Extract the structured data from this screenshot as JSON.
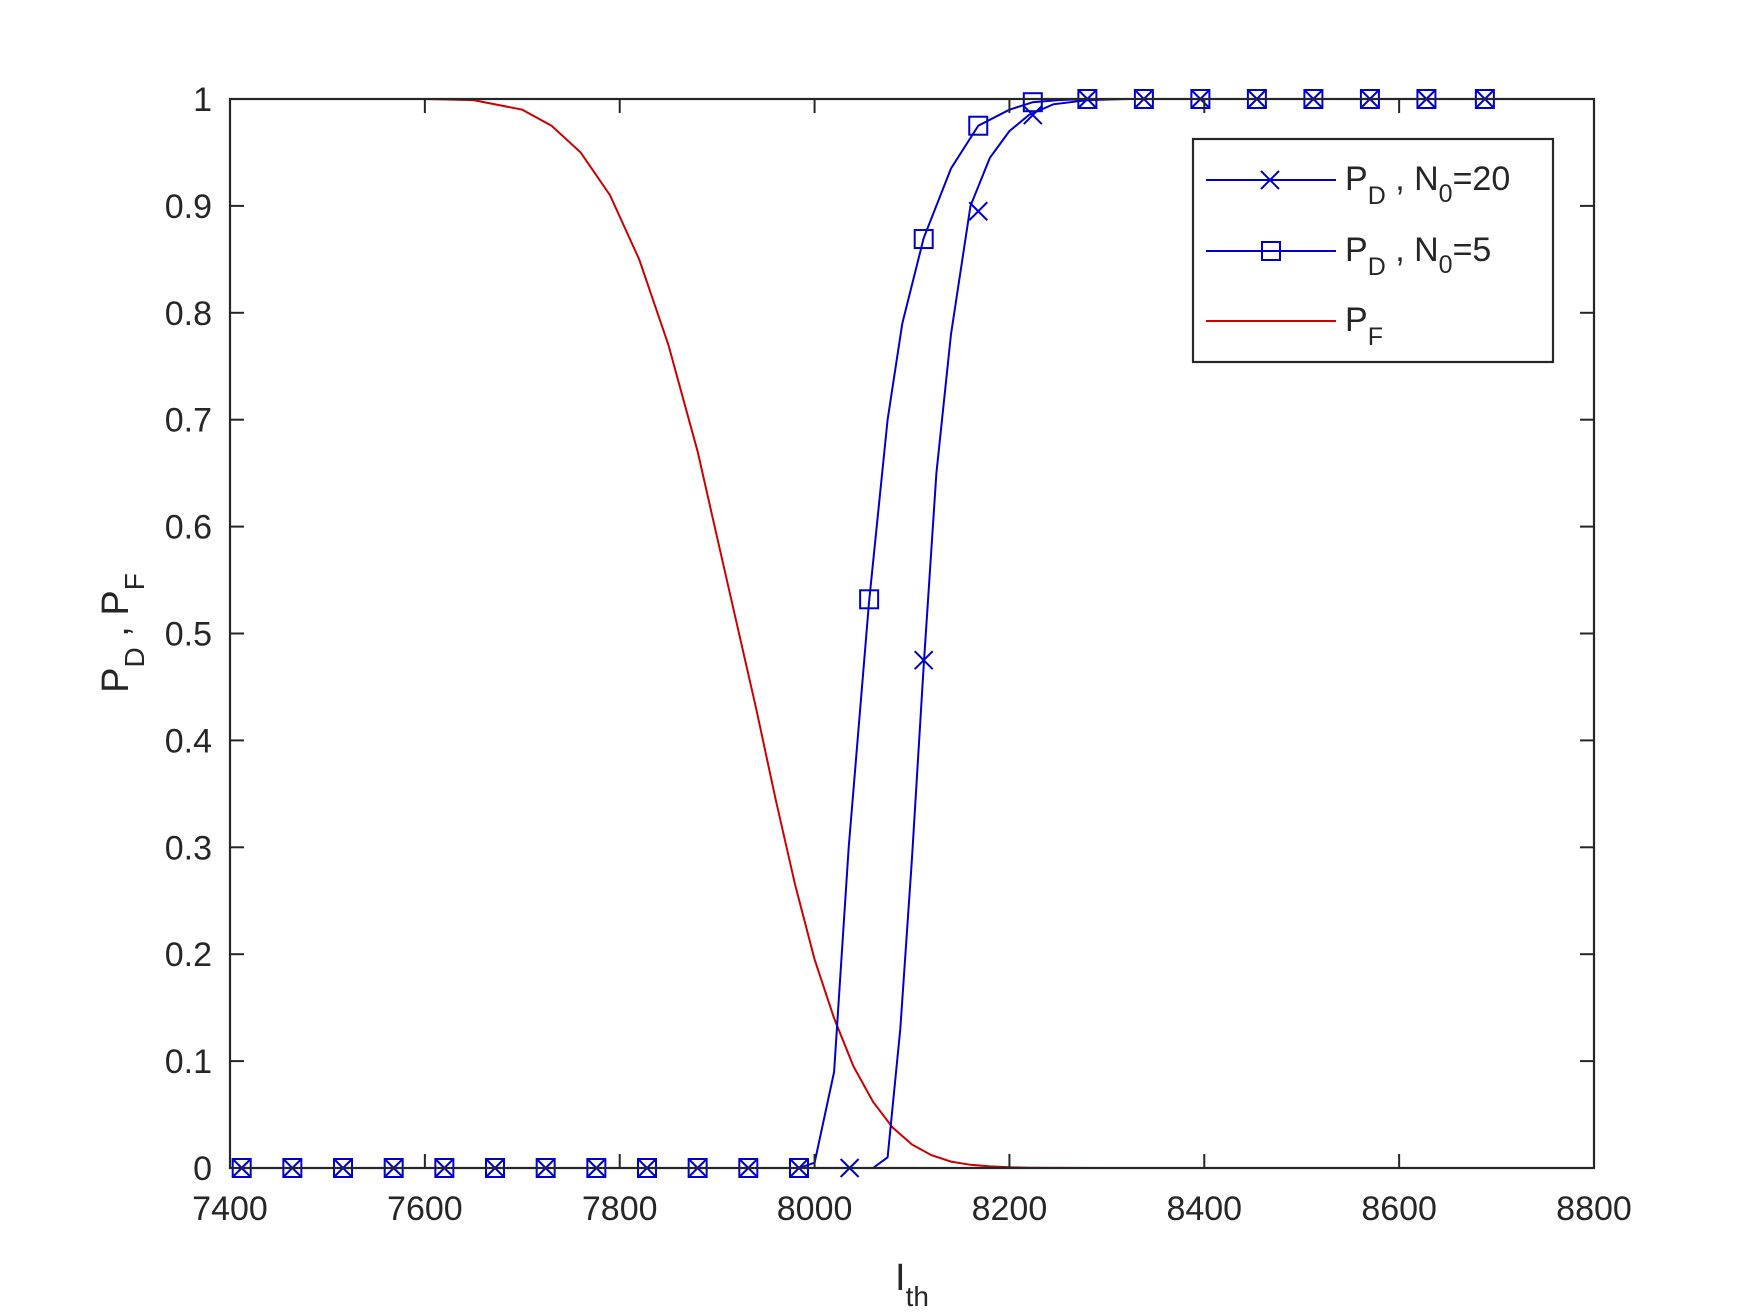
{
  "chart_data": {
    "type": "line",
    "xlabel": {
      "main": "I",
      "sub": "th"
    },
    "ylabel": [
      {
        "main": "P",
        "sub": "D"
      },
      {
        "sep": " , "
      },
      {
        "main": "P",
        "sub": "F"
      }
    ],
    "xlim": [
      7400,
      8800
    ],
    "ylim": [
      0,
      1
    ],
    "xticks": [
      7400,
      7600,
      7800,
      8000,
      8200,
      8400,
      8600,
      8800
    ],
    "yticks": [
      0,
      0.1,
      0.2,
      0.3,
      0.4,
      0.5,
      0.6,
      0.7,
      0.8,
      0.9,
      1
    ],
    "xtick_labels": [
      "7400",
      "7600",
      "7800",
      "8000",
      "8200",
      "8400",
      "8600",
      "8800"
    ],
    "ytick_labels": [
      "0",
      "0.1",
      "0.2",
      "0.3",
      "0.4",
      "0.5",
      "0.6",
      "0.7",
      "0.8",
      "0.9",
      "1"
    ],
    "grid": false,
    "legend_position": "top-right",
    "series": [
      {
        "name_parts": {
          "p": "P",
          "psub": "D",
          "mid": " , N",
          "nsub": "0",
          "tail": "=20"
        },
        "color": "#0000cc",
        "marker": "x",
        "x": [
          7412,
          7464,
          7516,
          7568,
          7620,
          7672,
          7724,
          7776,
          7828,
          7880,
          7932,
          7984,
          8000,
          8036,
          8060,
          8075,
          8088,
          8100,
          8112,
          8125,
          8140,
          8160,
          8180,
          8200,
          8220,
          8245,
          8280,
          8320,
          8400,
          8500,
          8600,
          8700
        ],
        "y": [
          0,
          0,
          0,
          0,
          0,
          0,
          0,
          0,
          0,
          0,
          0,
          0,
          0,
          0,
          0,
          0.01,
          0.13,
          0.29,
          0.47,
          0.65,
          0.78,
          0.9,
          0.945,
          0.97,
          0.985,
          0.995,
          0.999,
          1,
          1,
          1,
          1,
          1
        ],
        "marker_x": [
          7412,
          7464,
          7516,
          7568,
          7620,
          7672,
          7724,
          7776,
          7828,
          7880,
          7932,
          7984,
          8036,
          8112,
          8168,
          8224,
          8280,
          8338,
          8396,
          8454,
          8512,
          8570,
          8628,
          8688
        ],
        "marker_y": [
          0,
          0,
          0,
          0,
          0,
          0,
          0,
          0,
          0,
          0,
          0,
          0,
          0,
          0.475,
          0.895,
          0.985,
          1,
          1,
          1,
          1,
          1,
          1,
          1,
          1
        ]
      },
      {
        "name_parts": {
          "p": "P",
          "psub": "D",
          "mid": " , N",
          "nsub": "0",
          "tail": "=5"
        },
        "color": "#0000cc",
        "marker": "square",
        "x": [
          7412,
          7464,
          7516,
          7568,
          7620,
          7672,
          7724,
          7776,
          7828,
          7880,
          7932,
          7984,
          8000,
          8020,
          8035,
          8056,
          8075,
          8090,
          8112,
          8140,
          8168,
          8200,
          8224,
          8250,
          8280,
          8320,
          8400,
          8500,
          8600,
          8700
        ],
        "y": [
          0,
          0,
          0,
          0,
          0,
          0,
          0,
          0,
          0,
          0,
          0,
          0,
          0.005,
          0.09,
          0.3,
          0.53,
          0.7,
          0.79,
          0.87,
          0.935,
          0.975,
          0.99,
          0.997,
          0.999,
          1,
          1,
          1,
          1,
          1,
          1
        ],
        "marker_x": [
          7412,
          7464,
          7516,
          7568,
          7620,
          7672,
          7724,
          7776,
          7828,
          7880,
          7932,
          7984,
          8056,
          8112,
          8168,
          8224,
          8280,
          8338,
          8396,
          8454,
          8512,
          8570,
          8628,
          8688
        ],
        "marker_y": [
          0,
          0,
          0,
          0,
          0,
          0,
          0,
          0,
          0,
          0,
          0,
          0,
          0.532,
          0.869,
          0.975,
          0.997,
          1,
          1,
          1,
          1,
          1,
          1,
          1,
          1
        ]
      },
      {
        "name_parts": {
          "p": "P",
          "psub": "F"
        },
        "color": "#cc0000",
        "marker": "none",
        "x": [
          7412,
          7500,
          7600,
          7650,
          7700,
          7730,
          7760,
          7790,
          7820,
          7850,
          7880,
          7900,
          7920,
          7940,
          7960,
          7980,
          8000,
          8020,
          8040,
          8060,
          8080,
          8100,
          8120,
          8140,
          8160,
          8180,
          8200,
          8220,
          8250,
          8300,
          8400,
          8500,
          8600,
          8700,
          8712
        ],
        "y": [
          1,
          1,
          1,
          0.999,
          0.99,
          0.975,
          0.95,
          0.91,
          0.85,
          0.77,
          0.67,
          0.59,
          0.51,
          0.43,
          0.345,
          0.265,
          0.195,
          0.14,
          0.095,
          0.062,
          0.038,
          0.022,
          0.012,
          0.006,
          0.003,
          0.0015,
          0.0007,
          0.0003,
          0.0001,
          0,
          0,
          0,
          0,
          0,
          0
        ],
        "marker_x": [],
        "marker_y": []
      }
    ]
  }
}
